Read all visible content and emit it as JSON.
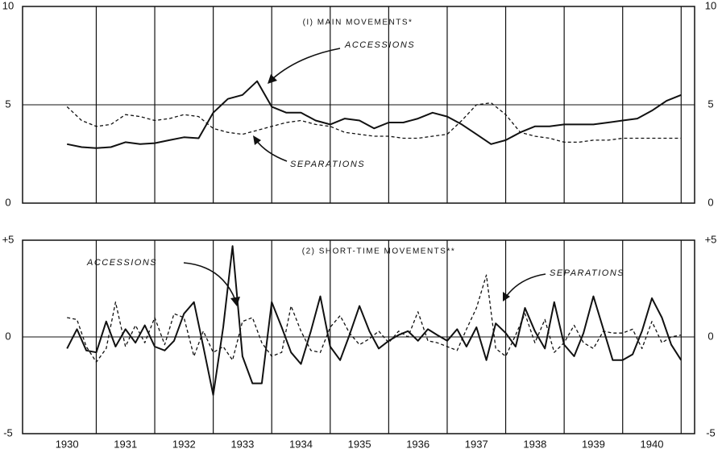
{
  "chart_data": [
    {
      "type": "line",
      "title": "(I) MAIN MOVEMENTS*",
      "xlim": [
        1929.74,
        1941.23
      ],
      "xgrid": [
        1931,
        1932,
        1933,
        1934,
        1935,
        1936,
        1937,
        1938,
        1939,
        1940,
        1941
      ],
      "ylim": [
        0,
        10
      ],
      "yticks": [
        0,
        5,
        10
      ],
      "x": [
        1930.5,
        1930.75,
        1931,
        1931.25,
        1931.5,
        1931.75,
        1932,
        1932.25,
        1932.5,
        1932.75,
        1933,
        1933.25,
        1933.5,
        1933.75,
        1934,
        1934.25,
        1934.5,
        1934.75,
        1935,
        1935.25,
        1935.5,
        1935.75,
        1936,
        1936.25,
        1936.5,
        1936.75,
        1937,
        1937.25,
        1937.5,
        1937.75,
        1938,
        1938.25,
        1938.5,
        1938.75,
        1939,
        1939.25,
        1939.5,
        1939.75,
        1940,
        1940.25,
        1940.5,
        1940.75,
        1941
      ],
      "series": [
        {
          "name": "ACCESSIONS",
          "color": "#111111",
          "dash": false,
          "values": [
            3.0,
            2.85,
            2.8,
            2.85,
            3.1,
            3.0,
            3.05,
            3.2,
            3.35,
            3.3,
            4.6,
            5.3,
            5.5,
            6.2,
            4.9,
            4.6,
            4.6,
            4.2,
            4.0,
            4.3,
            4.2,
            3.8,
            4.1,
            4.1,
            4.3,
            4.6,
            4.4,
            4.0,
            3.5,
            3.0,
            3.2,
            3.6,
            3.9,
            3.9,
            4.0,
            4.0,
            4.0,
            4.1,
            4.2,
            4.3,
            4.7,
            5.2,
            5.5
          ]
        },
        {
          "name": "SEPARATIONS",
          "color": "#111111",
          "dash": true,
          "values": [
            4.9,
            4.2,
            3.9,
            4.0,
            4.5,
            4.4,
            4.2,
            4.3,
            4.5,
            4.4,
            3.8,
            3.6,
            3.5,
            3.7,
            3.9,
            4.1,
            4.2,
            4.0,
            3.9,
            3.6,
            3.5,
            3.4,
            3.4,
            3.3,
            3.3,
            3.4,
            3.5,
            4.2,
            5.0,
            5.1,
            4.5,
            3.6,
            3.4,
            3.3,
            3.1,
            3.1,
            3.2,
            3.2,
            3.3,
            3.3,
            3.3,
            3.3,
            3.3
          ]
        }
      ]
    },
    {
      "type": "line",
      "title": "(2) SHORT-TIME MOVEMENTS**",
      "xlim": [
        1929.74,
        1941.23
      ],
      "xgrid": [
        1931,
        1932,
        1933,
        1934,
        1935,
        1936,
        1937,
        1938,
        1939,
        1940,
        1941
      ],
      "xticks": [
        {
          "value": 1930.5,
          "label": "1930"
        },
        {
          "value": 1931.5,
          "label": "1931"
        },
        {
          "value": 1932.5,
          "label": "1932"
        },
        {
          "value": 1933.5,
          "label": "1933"
        },
        {
          "value": 1934.5,
          "label": "1934"
        },
        {
          "value": 1935.5,
          "label": "1935"
        },
        {
          "value": 1936.5,
          "label": "1936"
        },
        {
          "value": 1937.5,
          "label": "1937"
        },
        {
          "value": 1938.5,
          "label": "1938"
        },
        {
          "value": 1939.5,
          "label": "1939"
        },
        {
          "value": 1940.5,
          "label": "1940"
        }
      ],
      "ylim": [
        -5,
        5
      ],
      "yticks": [
        -5,
        0,
        {
          "value": 5,
          "label": "+5"
        }
      ],
      "x": [
        1930.5,
        1930.67,
        1930.83,
        1931,
        1931.17,
        1931.33,
        1931.5,
        1931.67,
        1931.83,
        1932,
        1932.17,
        1932.33,
        1932.5,
        1932.67,
        1932.83,
        1933,
        1933.17,
        1933.33,
        1933.5,
        1933.67,
        1933.83,
        1934,
        1934.17,
        1934.33,
        1934.5,
        1934.67,
        1934.83,
        1935,
        1935.17,
        1935.33,
        1935.5,
        1935.67,
        1935.83,
        1936,
        1936.17,
        1936.33,
        1936.5,
        1936.67,
        1936.83,
        1937,
        1937.17,
        1937.33,
        1937.5,
        1937.67,
        1937.83,
        1938,
        1938.17,
        1938.33,
        1938.5,
        1938.67,
        1938.83,
        1939,
        1939.17,
        1939.33,
        1939.5,
        1939.67,
        1939.83,
        1940,
        1940.17,
        1940.33,
        1940.5,
        1940.67,
        1940.83,
        1941
      ],
      "series": [
        {
          "name": "ACCESSIONS",
          "color": "#111111",
          "dash": false,
          "values": [
            -0.6,
            0.4,
            -0.7,
            -0.8,
            0.8,
            -0.5,
            0.4,
            -0.3,
            0.6,
            -0.5,
            -0.7,
            -0.2,
            1.2,
            1.8,
            -0.5,
            -3.0,
            0.5,
            4.7,
            -1.0,
            -2.4,
            -2.4,
            1.8,
            0.5,
            -0.8,
            -1.4,
            0.3,
            2.1,
            -0.5,
            -1.2,
            0.1,
            1.6,
            0.3,
            -0.6,
            -0.2,
            0.1,
            0.3,
            -0.2,
            0.4,
            0.1,
            -0.2,
            0.4,
            -0.5,
            0.5,
            -1.2,
            0.7,
            0.2,
            -0.5,
            1.5,
            0.3,
            -0.6,
            1.8,
            -0.4,
            -1.0,
            0.2,
            2.1,
            0.4,
            -1.2,
            -1.2,
            -0.9,
            0.3,
            2.0,
            1.0,
            -0.4,
            -1.2
          ]
        },
        {
          "name": "SEPARATIONS",
          "color": "#111111",
          "dash": true,
          "values": [
            1.0,
            0.9,
            -0.5,
            -1.3,
            -0.6,
            1.8,
            -0.5,
            0.6,
            -0.3,
            1.0,
            -0.4,
            1.2,
            1.0,
            -1.0,
            0.3,
            -0.8,
            -0.5,
            -1.2,
            0.8,
            1.0,
            -0.3,
            -1.0,
            -0.8,
            1.6,
            0.3,
            -0.7,
            -0.8,
            0.5,
            1.1,
            0.2,
            -0.4,
            -0.1,
            0.3,
            -0.3,
            0.3,
            0.0,
            1.3,
            -0.2,
            -0.3,
            -0.5,
            -0.7,
            0.4,
            1.5,
            3.2,
            -0.6,
            -1.0,
            0.1,
            1.2,
            -0.3,
            0.9,
            -0.8,
            -0.3,
            0.6,
            -0.3,
            -0.6,
            0.3,
            0.2,
            0.2,
            0.4,
            -0.6,
            0.8,
            -0.3,
            0.0,
            0.1
          ]
        }
      ]
    }
  ]
}
